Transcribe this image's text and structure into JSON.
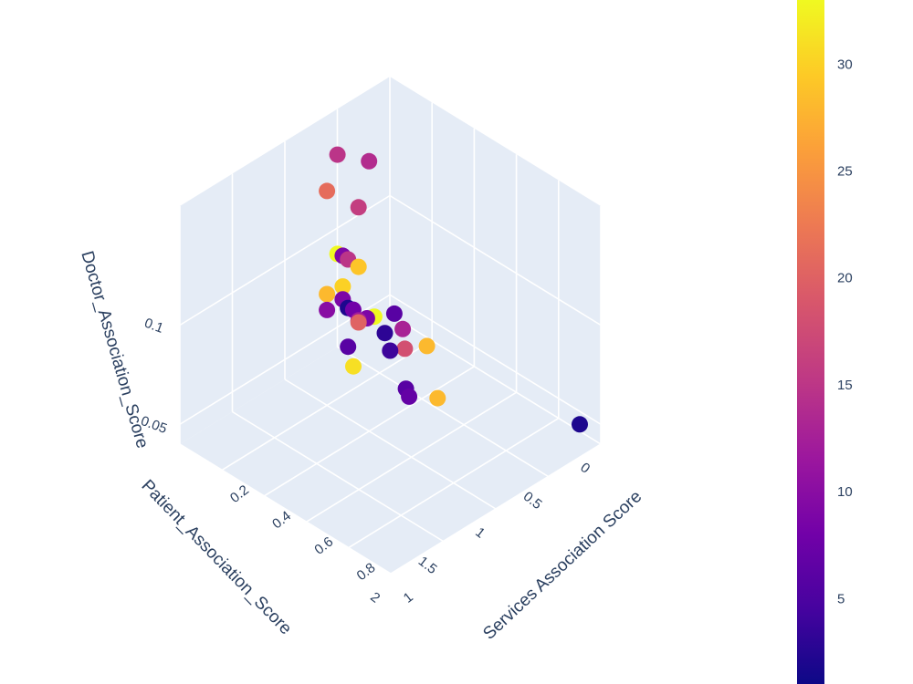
{
  "chart_data": {
    "type": "scatter",
    "dimensions": 3,
    "axes": {
      "x": {
        "title": "Patient_Association_Score",
        "range": [
          0,
          2
        ],
        "ticks": [
          "0",
          "0.5",
          "1",
          "1.5",
          "2"
        ]
      },
      "y": {
        "title": "Services Association Score",
        "range": [
          0,
          1
        ],
        "ticks": [
          "0.2",
          "0.4",
          "0.6",
          "0.8",
          "1"
        ]
      },
      "z": {
        "title": "Doctor_Association_Score",
        "range": [
          0.04,
          0.16
        ],
        "ticks": [
          "0.05",
          "0.1"
        ]
      }
    },
    "colorbar": {
      "range": [
        1,
        33
      ],
      "ticks": [
        "5",
        "10",
        "15",
        "20",
        "25",
        "30"
      ],
      "colorscale": [
        "#0d0887",
        "#46039f",
        "#7201a8",
        "#9c179e",
        "#bd3786",
        "#d8576b",
        "#ed7953",
        "#fb9f3a",
        "#fdca26",
        "#f0f921"
      ]
    },
    "points": [
      {
        "x": 0.1,
        "y": 0.95,
        "z": 0.05,
        "c": 2
      },
      {
        "x": 0.45,
        "y": 0.4,
        "z": 0.065,
        "c": 28
      },
      {
        "x": 0.5,
        "y": 0.32,
        "z": 0.06,
        "c": 18
      },
      {
        "x": 0.48,
        "y": 0.3,
        "z": 0.068,
        "c": 13
      },
      {
        "x": 0.55,
        "y": 0.25,
        "z": 0.065,
        "c": 3
      },
      {
        "x": 0.55,
        "y": 0.2,
        "z": 0.07,
        "c": 33
      },
      {
        "x": 0.6,
        "y": 0.3,
        "z": 0.061,
        "c": 4
      },
      {
        "x": 0.6,
        "y": 0.32,
        "z": 0.081,
        "c": 6
      },
      {
        "x": 0.65,
        "y": 0.55,
        "z": 0.055,
        "c": 28
      },
      {
        "x": 0.62,
        "y": 0.4,
        "z": 0.045,
        "c": 7
      },
      {
        "x": 0.65,
        "y": 0.4,
        "z": 0.05,
        "c": 6
      },
      {
        "x": 0.7,
        "y": 0.2,
        "z": 0.073,
        "c": 12
      },
      {
        "x": 0.7,
        "y": 0.2,
        "z": 0.072,
        "c": 20
      },
      {
        "x": 0.72,
        "y": 0.25,
        "z": 0.078,
        "c": 9
      },
      {
        "x": 0.7,
        "y": 0.15,
        "z": 0.076,
        "c": 2
      },
      {
        "x": 0.8,
        "y": 0.2,
        "z": 0.063,
        "c": 6
      },
      {
        "x": 0.8,
        "y": 0.1,
        "z": 0.075,
        "c": 10
      },
      {
        "x": 0.8,
        "y": 0.1,
        "z": 0.083,
        "c": 28
      },
      {
        "x": 0.85,
        "y": 0.25,
        "z": 0.058,
        "c": 31
      },
      {
        "x": 0.75,
        "y": 0.2,
        "z": 0.08,
        "c": 8
      },
      {
        "x": 0.75,
        "y": 0.15,
        "z": 0.082,
        "c": 9
      },
      {
        "x": 0.7,
        "y": 0.2,
        "z": 0.1,
        "c": 29
      },
      {
        "x": 0.7,
        "y": 0.1,
        "z": 0.1,
        "c": 33
      },
      {
        "x": 0.85,
        "y": 0.2,
        "z": 0.095,
        "c": 30
      },
      {
        "x": 0.75,
        "y": 0.15,
        "z": 0.104,
        "c": 9
      },
      {
        "x": 0.8,
        "y": 0.2,
        "z": 0.107,
        "c": 15
      },
      {
        "x": 0.7,
        "y": 0.2,
        "z": 0.13,
        "c": 16
      },
      {
        "x": 0.8,
        "y": 0.1,
        "z": 0.135,
        "c": 21
      },
      {
        "x": 0.6,
        "y": 0.2,
        "z": 0.15,
        "c": 14
      },
      {
        "x": 0.7,
        "y": 0.1,
        "z": 0.15,
        "c": 15
      }
    ]
  }
}
